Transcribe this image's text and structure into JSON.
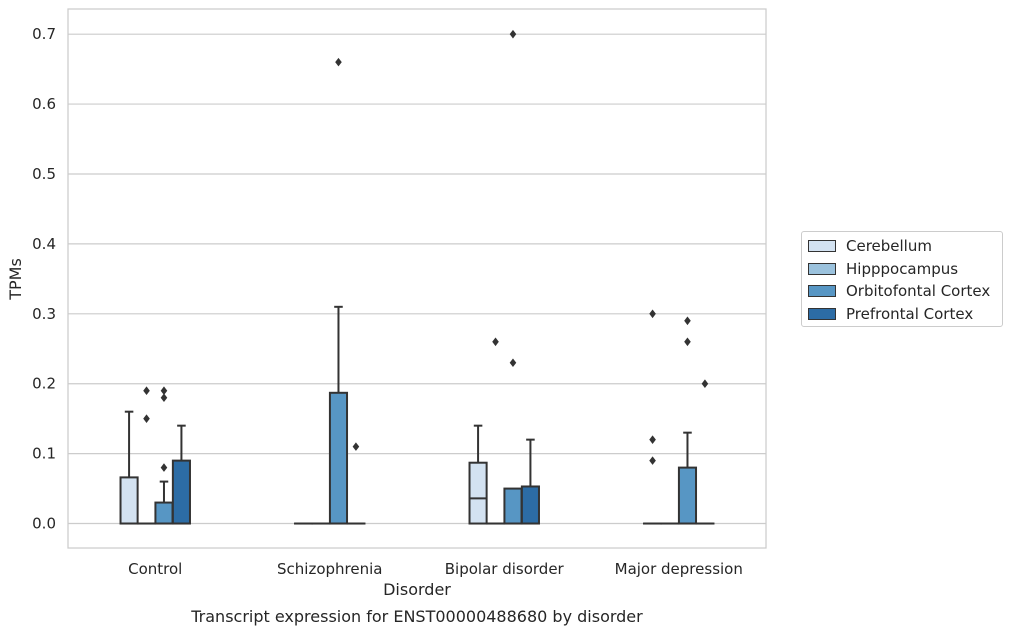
{
  "chart_data": {
    "type": "box",
    "title": "",
    "xlabel": "Disorder",
    "ylabel": "TPMs",
    "caption": "Transcript expression for ENST00000488680 by disorder",
    "categories": [
      "Control",
      "Schizophrenia",
      "Bipolar disorder",
      "Major depression"
    ],
    "yticks": [
      "0.0",
      "0.1",
      "0.2",
      "0.3",
      "0.4",
      "0.5",
      "0.6",
      "0.7"
    ],
    "ylim": [
      -0.035,
      0.736
    ],
    "grid": "horizontal",
    "legend_position": "right",
    "series": [
      {
        "name": "Cerebellum",
        "color": "#d3e2f1",
        "boxes": [
          {
            "q1": 0.0,
            "median": 0.0,
            "q3": 0.066,
            "whisker_low": 0.0,
            "whisker_high": 0.16,
            "outliers": []
          },
          {
            "q1": 0.0,
            "median": 0.0,
            "q3": 0.0,
            "whisker_low": 0.0,
            "whisker_high": 0.0,
            "outliers": []
          },
          {
            "q1": 0.0,
            "median": 0.036,
            "q3": 0.087,
            "whisker_low": 0.0,
            "whisker_high": 0.14,
            "outliers": []
          },
          {
            "q1": 0.0,
            "median": 0.0,
            "q3": 0.0,
            "whisker_low": 0.0,
            "whisker_high": 0.0,
            "outliers": [
              0.09,
              0.12,
              0.3
            ]
          }
        ]
      },
      {
        "name": "Hipppocampus",
        "color": "#9bc2dd",
        "boxes": [
          {
            "q1": 0.0,
            "median": 0.0,
            "q3": 0.0,
            "whisker_low": 0.0,
            "whisker_high": 0.0,
            "outliers": [
              0.15,
              0.19
            ]
          },
          {
            "q1": 0.0,
            "median": 0.0,
            "q3": 0.0,
            "whisker_low": 0.0,
            "whisker_high": 0.0,
            "outliers": []
          },
          {
            "q1": 0.0,
            "median": 0.0,
            "q3": 0.0,
            "whisker_low": 0.0,
            "whisker_high": 0.0,
            "outliers": [
              0.26
            ]
          },
          {
            "q1": 0.0,
            "median": 0.0,
            "q3": 0.0,
            "whisker_low": 0.0,
            "whisker_high": 0.0,
            "outliers": []
          }
        ]
      },
      {
        "name": "Orbitofontal Cortex",
        "color": "#5796c4",
        "boxes": [
          {
            "q1": 0.0,
            "median": 0.0,
            "q3": 0.03,
            "whisker_low": 0.0,
            "whisker_high": 0.06,
            "outliers": [
              0.08,
              0.18,
              0.19
            ]
          },
          {
            "q1": 0.0,
            "median": 0.0,
            "q3": 0.187,
            "whisker_low": 0.0,
            "whisker_high": 0.31,
            "outliers": [
              0.66
            ]
          },
          {
            "q1": 0.0,
            "median": 0.0,
            "q3": 0.05,
            "whisker_low": 0.0,
            "whisker_high": 0.05,
            "outliers": [
              0.23,
              0.7
            ]
          },
          {
            "q1": 0.0,
            "median": 0.0,
            "q3": 0.08,
            "whisker_low": 0.0,
            "whisker_high": 0.13,
            "outliers": [
              0.26,
              0.29
            ]
          }
        ]
      },
      {
        "name": "Prefrontal Cortex",
        "color": "#2c6ca5",
        "boxes": [
          {
            "q1": 0.0,
            "median": 0.0,
            "q3": 0.09,
            "whisker_low": 0.0,
            "whisker_high": 0.14,
            "outliers": []
          },
          {
            "q1": 0.0,
            "median": 0.0,
            "q3": 0.0,
            "whisker_low": 0.0,
            "whisker_high": 0.0,
            "outliers": [
              0.11
            ]
          },
          {
            "q1": 0.0,
            "median": 0.0,
            "q3": 0.053,
            "whisker_low": 0.0,
            "whisker_high": 0.12,
            "outliers": []
          },
          {
            "q1": 0.0,
            "median": 0.0,
            "q3": 0.0,
            "whisker_low": 0.0,
            "whisker_high": 0.0,
            "outliers": [
              0.2
            ]
          }
        ]
      }
    ]
  }
}
